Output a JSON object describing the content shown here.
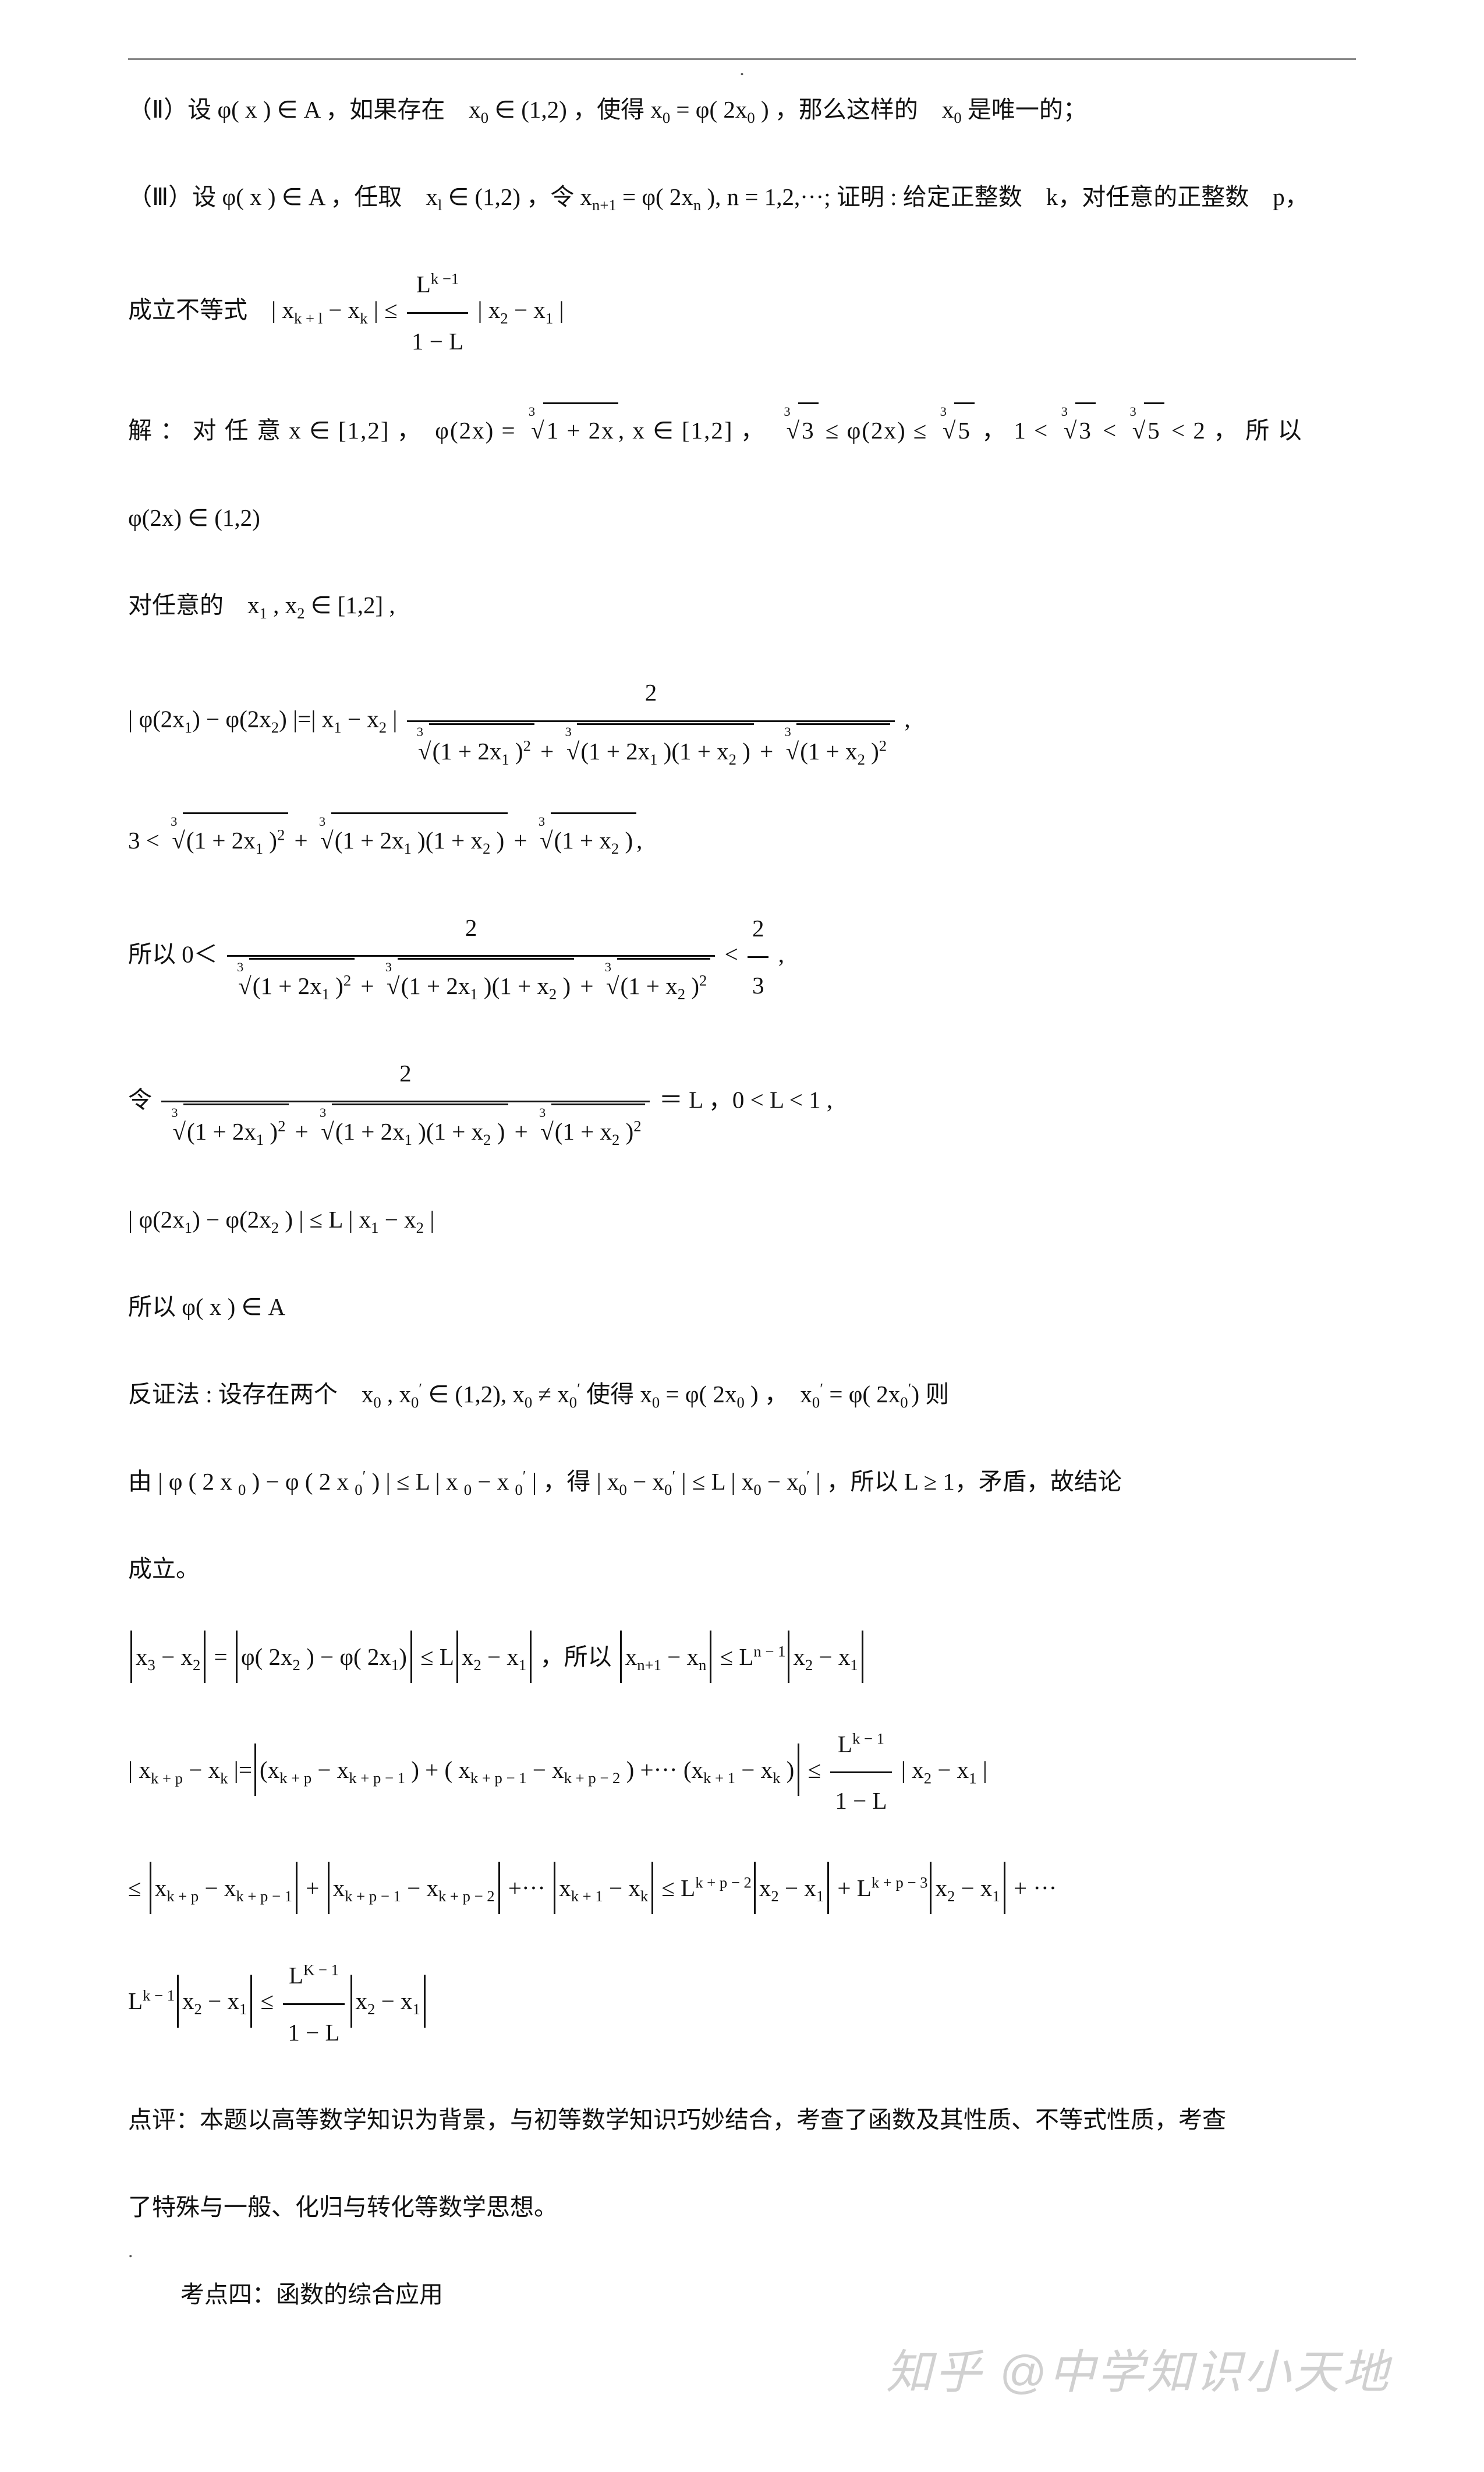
{
  "header_dot": ".",
  "line1_a": "（Ⅱ）设 ",
  "line1_b": "φ( x )",
  "line1_c": " ∈ A ，如果存在　x",
  "line1_c2": "0",
  "line1_d": " ∈ (1,2) ，使得 x",
  "line1_d2": "0",
  "line1_e": "  = ",
  "line1_f": "φ",
  "line1_g": "( 2x",
  "line1_g2": "0",
  "line1_h": " ) ，那么这样的　x",
  "line1_h2": "0",
  "line1_i": " 是唯一的；",
  "line2_a": "（Ⅲ）设 ",
  "line2_b": "φ( x )",
  "line2_c": " ∈ A ，任取　x",
  "line2_c2": "l",
  "line2_d": " ∈ (1,2) ，令 x",
  "line2_d2": "n+1",
  "line2_e": "  = ",
  "line2_f": "φ",
  "line2_g": "( 2x",
  "line2_g2": "n",
  "line2_h": " ), n = 1,2,···; 证明 : 给定正整数　k，对任意的正整数　p，",
  "line3_a": "成立不等式　| x",
  "line3_a2": "k + l",
  "line3_b": "  − x",
  "line3_b2": "k",
  "line3_c": "  | ≤ ",
  "line3_num": "L",
  "line3_numexp": "k −1",
  "line3_den": "1 − L",
  "line3_d": " | x",
  "line3_d2": "2",
  "line3_e": "  − x",
  "line3_e2": "1",
  "line3_f": " |",
  "line4_a": "解 ： 对 任 意 x ∈ [1,2] ，　",
  "line4_b": "φ",
  "line4_c": "(2x) = ",
  "line4_root": "1 + 2x",
  "line4_d": ", x ∈ [1,2] ，　",
  "line4_r3": "3",
  "line4_e": " ≤ ",
  "line4_f": "φ",
  "line4_g": "(2x)  ≤ ",
  "line4_r5": "5",
  "line4_h": " ， 1 < ",
  "line4_i": " < ",
  "line4_j": " < 2 ， 所 以",
  "line5_a": "φ",
  "line5_b": "(2x) ∈ (1,2)",
  "line6_a": "对任意的　x",
  "line6_sub1": "1",
  "line6_b": " , x",
  "line6_sub2": "2",
  "line6_c": "  ∈ [1,2] ,",
  "line7_a": "| ",
  "line7_b": "φ",
  "line7_c": "(2x",
  "line7_c2": "1",
  "line7_d": ") − ",
  "line7_e": "φ",
  "line7_f": "(2x",
  "line7_f2": "2",
  "line7_g": ") |=| x",
  "line7_g2": "1",
  "line7_h": "  − x",
  "line7_h2": "2",
  "line7_i": " | ",
  "line7_num": "2",
  "line7_den_a": "(1 + 2x",
  "line7_den_a2": "1",
  "line7_den_b": " )",
  "line7_den_exp2": "2",
  "line7_den_mid1": "  + ",
  "line7_den_c": "(1 + 2x",
  "line7_den_c2": "1",
  "line7_den_d": " )(1 + x",
  "line7_den_d2": "2",
  "line7_den_e": " )",
  "line7_den_mid2": " + ",
  "line7_den_f": "(1 + x",
  "line7_den_f2": "2",
  "line7_den_g": " )",
  "line7_j": " ,",
  "line8_a": "3 < ",
  "line8_b": "  + ",
  "line8_c": " + ",
  "line8_d": ",",
  "line9_a": "所以 0＜ ",
  "line9_num": "2",
  "line9_b": "  < ",
  "line9_rnum": "2",
  "line9_rden": "3",
  "line9_c": " ,",
  "line10_a": "令 ",
  "line10_num": "2",
  "line10_b": " ＝ L ，0 < L < 1 ,",
  "line11_a": "| ",
  "line11_b": "φ",
  "line11_c": "(2x",
  "line11_c2": "1",
  "line11_d": ")  − ",
  "line11_e": "φ",
  "line11_f": "(2x",
  "line11_f2": "2",
  "line11_g": " ) | ≤ L | x",
  "line11_g2": "1",
  "line11_h": "  − x",
  "line11_h2": "2",
  "line11_i": " |",
  "line12_a": "所以 ",
  "line12_b": "φ( x )",
  "line12_c": " ∈ A",
  "line13_a": "反证法 : 设存在两个　x",
  "line13_a2": "0",
  "line13_b": " , x",
  "line13_b2": "0",
  "line13_bp": "′",
  "line13_c": " ∈ (1,2), x",
  "line13_c2": "0",
  "line13_d": "  ≠ x",
  "line13_d2": "0",
  "line13_dp": "′",
  "line13_e": " 使得 x",
  "line13_e2": "0",
  "line13_f": "  = ",
  "line13_g": "φ",
  "line13_h": "( 2x",
  "line13_h2": "0",
  "line13_i": " ) ，　x",
  "line13_i2": "0",
  "line13_ip": "′",
  "line13_j": "  = ",
  "line13_k": "φ",
  "line13_l": "( 2x",
  "line13_l2": "0",
  "line13_lp": "′",
  "line13_m": ")  则",
  "line14_a": "由 | ",
  "line14_b": "φ",
  "line14_c": " ( 2 x ",
  "line14_c2": "0",
  "line14_d": "  )  −  ",
  "line14_e": "φ",
  "line14_f": " ( 2 x ",
  "line14_f2": "0",
  "line14_fp": "′",
  "line14_g": "  )  | ≤ L  |  x ",
  "line14_g2": "0",
  "line14_h": "   −  x ",
  "line14_h2": "0",
  "line14_hp": "′",
  "line14_i": "  | ，得 | x",
  "line14_i2": "0",
  "line14_j": "  − x",
  "line14_j2": "0",
  "line14_jp": "′",
  "line14_k": "  | ≤ L | x",
  "line14_k2": "0",
  "line14_l": "  − x",
  "line14_l2": "0",
  "line14_lp": "′",
  "line14_m": "  | ，所以 L ≥ 1，矛盾，故结论",
  "line14_n": "成立。",
  "line15_a": "x",
  "line15_a2": "3",
  "line15_b": "  − x",
  "line15_b2": "2",
  "line15_c": "  = ",
  "line15_d": "φ",
  "line15_e": "( 2x",
  "line15_e2": "2",
  "line15_f": " )  − ",
  "line15_g": "φ",
  "line15_h": "( 2x",
  "line15_h2": "1",
  "line15_i": ")",
  "line15_j": " ≤ L",
  "line15_k": "x",
  "line15_k2": "2",
  "line15_l": "  − x",
  "line15_l2": "1",
  "line15_m": " ，所以 ",
  "line15_n": "x",
  "line15_n2": "n+1",
  "line15_o": "  − x",
  "line15_o2": "n",
  "line15_p": " ≤ L",
  "line15_pexp": "n − 1",
  "line15_q": "x",
  "line15_q2": "2",
  "line15_r": "  − x",
  "line15_r2": "1",
  "line16_a": "| x",
  "line16_a2": "k + p",
  "line16_b": "  − x",
  "line16_b2": "k",
  "line16_c": "  |=",
  "line16_d": "(x",
  "line16_d2": "k + p",
  "line16_e": "  − x",
  "line16_e2": "k + p − 1",
  "line16_f": "  ) + ( x",
  "line16_f2": "k + p − 1",
  "line16_g": "  − x",
  "line16_g2": "k + p − 2",
  "line16_h": "  ) +··· (x",
  "line16_h2": "k + 1",
  "line16_i": "  − x",
  "line16_i2": "k",
  "line16_j": " )",
  "line16_k": " ≤ ",
  "line16_num": "L",
  "line16_numexp": "k − 1",
  "line16_den": "1 − L",
  "line16_l": "  | x",
  "line16_l2": "2",
  "line16_m": "  − x",
  "line16_m2": "1",
  "line16_n": " |",
  "line17_a": "≤ ",
  "line17_b": "x",
  "line17_b2": "k + p",
  "line17_c": "  − x",
  "line17_c2": "k + p − 1",
  "line17_d": "  + ",
  "line17_e": "x",
  "line17_e2": "k + p − 1",
  "line17_f": "  − x",
  "line17_f2": "k + p − 2",
  "line17_g": "  +··· ",
  "line17_h": "x",
  "line17_h2": "k + 1",
  "line17_i": "  − x",
  "line17_i2": "k",
  "line17_j": "  ≤ L",
  "line17_jexp": "k + p − 2",
  "line17_k": "x",
  "line17_k2": "2",
  "line17_l": "  − x",
  "line17_l2": "1",
  "line17_m": " + L",
  "line17_mexp": "k + p − 3",
  "line17_n": "x",
  "line17_n2": "2",
  "line17_o": "  − x",
  "line17_o2": "1",
  "line17_p": "  + ···",
  "line18_a": "L",
  "line18_aexp": "k − 1",
  "line18_b": "x",
  "line18_b2": "2",
  "line18_c": "  − x",
  "line18_c2": "1",
  "line18_d": "  ≤ ",
  "line18_num": "L",
  "line18_numexp": "K − 1",
  "line18_den": "1 − L",
  "line18_e": "x",
  "line18_e2": "2",
  "line18_f": "  − x",
  "line18_f2": "1",
  "comment1": "点评：本题以高等数学知识为背景，与初等数学知识巧妙结合，考查了函数及其性质、不等式性质，考查",
  "comment2": "了特殊与一般、化归与转化等数学思想。",
  "topic": "考点四：函数的综合应用",
  "watermark": "知乎 @中学知识小天地",
  "corner_dot": "."
}
